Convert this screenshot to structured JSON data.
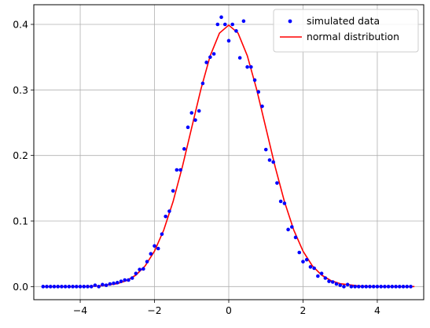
{
  "chart_data": {
    "type": "scatter",
    "title": "",
    "xlabel": "",
    "ylabel": "",
    "xlim": [
      -5.25,
      5.25
    ],
    "ylim": [
      -0.02,
      0.43
    ],
    "grid": true,
    "x_ticks": [
      -4,
      -2,
      0,
      2,
      4
    ],
    "x_tick_labels": [
      "−4",
      "−2",
      "0",
      "2",
      "4"
    ],
    "y_ticks": [
      0.0,
      0.1,
      0.2,
      0.3,
      0.4
    ],
    "y_tick_labels": [
      "0.0",
      "0.1",
      "0.2",
      "0.3",
      "0.4"
    ],
    "legend": {
      "position": "top-right",
      "entries": [
        "simulated data",
        "normal distribution"
      ]
    },
    "series": [
      {
        "name": "simulated data",
        "kind": "points",
        "color": "#0000ff",
        "x": [
          -5.0,
          -4.9,
          -4.8,
          -4.7,
          -4.6,
          -4.5,
          -4.4,
          -4.3,
          -4.2,
          -4.1,
          -4.0,
          -3.9,
          -3.8,
          -3.7,
          -3.6,
          -3.5,
          -3.4,
          -3.3,
          -3.2,
          -3.1,
          -3.0,
          -2.9,
          -2.8,
          -2.7,
          -2.6,
          -2.5,
          -2.4,
          -2.3,
          -2.2,
          -2.1,
          -2.0,
          -1.9,
          -1.8,
          -1.7,
          -1.6,
          -1.5,
          -1.4,
          -1.3,
          -1.2,
          -1.1,
          -1.0,
          -0.9,
          -0.8,
          -0.7,
          -0.6,
          -0.5,
          -0.4,
          -0.3,
          -0.2,
          -0.1,
          0.0,
          0.1,
          0.2,
          0.3,
          0.4,
          0.5,
          0.6,
          0.7,
          0.8,
          0.9,
          1.0,
          1.1,
          1.2,
          1.3,
          1.4,
          1.5,
          1.6,
          1.7,
          1.8,
          1.9,
          2.0,
          2.1,
          2.2,
          2.3,
          2.4,
          2.5,
          2.6,
          2.7,
          2.8,
          2.9,
          3.0,
          3.1,
          3.2,
          3.3,
          3.4,
          3.5,
          3.6,
          3.7,
          3.8,
          3.9,
          4.0,
          4.1,
          4.2,
          4.3,
          4.4,
          4.5,
          4.6,
          4.7,
          4.8,
          4.9
        ],
        "y": [
          0.0,
          0.0,
          0.0,
          0.0,
          0.0,
          0.0,
          0.0,
          0.0,
          0.0,
          0.0,
          0.0,
          0.0,
          0.0,
          0.0,
          0.002,
          0.0,
          0.003,
          0.002,
          0.004,
          0.005,
          0.006,
          0.008,
          0.01,
          0.01,
          0.013,
          0.02,
          0.026,
          0.027,
          0.038,
          0.05,
          0.062,
          0.058,
          0.08,
          0.107,
          0.115,
          0.146,
          0.178,
          0.178,
          0.21,
          0.243,
          0.265,
          0.254,
          0.268,
          0.31,
          0.342,
          0.35,
          0.355,
          0.4,
          0.411,
          0.4,
          0.375,
          0.4,
          0.39,
          0.349,
          0.405,
          0.335,
          0.335,
          0.315,
          0.297,
          0.275,
          0.209,
          0.193,
          0.19,
          0.158,
          0.13,
          0.127,
          0.087,
          0.091,
          0.075,
          0.052,
          0.038,
          0.041,
          0.03,
          0.028,
          0.016,
          0.02,
          0.013,
          0.008,
          0.007,
          0.004,
          0.002,
          0.0,
          0.003,
          0.0,
          0.0,
          0.0,
          0.0,
          0.0,
          0.0,
          0.0,
          0.0,
          0.0,
          0.0,
          0.0,
          0.0,
          0.0,
          0.0,
          0.0,
          0.0,
          0.0
        ]
      },
      {
        "name": "normal distribution",
        "kind": "line",
        "color": "#ff0000",
        "x": [
          -5.0,
          -4.5,
          -4.0,
          -3.5,
          -3.0,
          -2.75,
          -2.5,
          -2.25,
          -2.0,
          -1.75,
          -1.5,
          -1.25,
          -1.0,
          -0.75,
          -0.5,
          -0.25,
          0.0,
          0.25,
          0.5,
          0.75,
          1.0,
          1.25,
          1.5,
          1.75,
          2.0,
          2.25,
          2.5,
          2.75,
          3.0,
          3.5,
          4.0,
          4.5,
          5.0
        ],
        "y": [
          0.0,
          0.0,
          0.0001,
          0.0009,
          0.0044,
          0.0091,
          0.0175,
          0.0317,
          0.054,
          0.0863,
          0.1295,
          0.1826,
          0.242,
          0.3011,
          0.3521,
          0.3867,
          0.3989,
          0.3867,
          0.3521,
          0.3011,
          0.242,
          0.1826,
          0.1295,
          0.0863,
          0.054,
          0.0317,
          0.0175,
          0.0091,
          0.0044,
          0.0009,
          0.0001,
          0.0,
          0.0
        ]
      }
    ]
  }
}
